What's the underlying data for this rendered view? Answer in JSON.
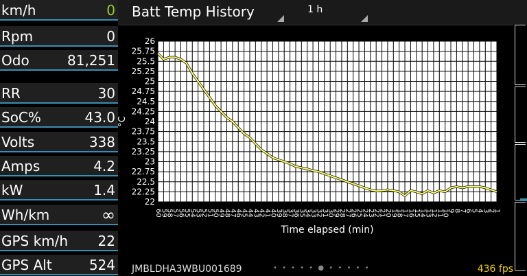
{
  "sidebar": {
    "speed": {
      "label": "km/h",
      "value": "0"
    },
    "rpm": {
      "label": "Rpm",
      "value": "0"
    },
    "odo": {
      "label": "Odo",
      "value": "81,251"
    },
    "rr": {
      "label": "RR",
      "value": "30"
    },
    "soc": {
      "label": "SoC%",
      "value": "43.0"
    },
    "volts": {
      "label": "Volts",
      "value": "338"
    },
    "amps": {
      "label": "Amps",
      "value": "4.2"
    },
    "kw": {
      "label": "kW",
      "value": "1.4"
    },
    "whkm": {
      "label": "Wh/km",
      "value": "∞"
    },
    "gps_speed": {
      "label": "GPS km/h",
      "value": "22"
    },
    "gps_alt": {
      "label": "GPS Alt",
      "value": "524"
    }
  },
  "header": {
    "title": "Batt Temp History",
    "range": "1 h"
  },
  "footer": {
    "vin": "JMBLDHA3WBU001689",
    "pager_dots": "• • • • • ● • • • • •",
    "fps": "436 fps"
  },
  "colors": {
    "accent": "#3a8fb5",
    "series_line": "#ffff66",
    "speed_value": "#9acd32",
    "fps": "#f0d000"
  },
  "chart_data": {
    "type": "line",
    "title": "",
    "xlabel": "Time elapsed (min)",
    "ylabel": "°C",
    "ylim": [
      22,
      26
    ],
    "yticks": [
      "22",
      "22.25",
      "22.5",
      "22.75",
      "23",
      "23.25",
      "23.5",
      "23.75",
      "24",
      "24.25",
      "24.5",
      "24.75",
      "25",
      "25.25",
      "25.5",
      "25.75",
      "26"
    ],
    "xlim": [
      60,
      1
    ],
    "xticks": [
      "60",
      "59",
      "58",
      "57",
      "56",
      "55",
      "54",
      "53",
      "52",
      "51",
      "50",
      "49",
      "48",
      "47",
      "46",
      "45",
      "44",
      "43",
      "42",
      "41",
      "40",
      "39",
      "38",
      "37",
      "36",
      "35",
      "34",
      "33",
      "32",
      "31",
      "30",
      "29",
      "28",
      "27",
      "26",
      "25",
      "24",
      "23",
      "22",
      "21",
      "20",
      "19",
      "18",
      "17",
      "16",
      "15",
      "14",
      "13",
      "12",
      "11",
      "10",
      "9",
      "8",
      "7",
      "6",
      "5",
      "4",
      "3",
      "2",
      "1"
    ],
    "grid": true,
    "series": [
      {
        "x": [
          60,
          59,
          58,
          57,
          56,
          55,
          54,
          53,
          52,
          51,
          50,
          49,
          48,
          47,
          46,
          45,
          44,
          43,
          42,
          41,
          40,
          39,
          38,
          37,
          36,
          35,
          34,
          33,
          32,
          31,
          30,
          29,
          28,
          27,
          26,
          25,
          24,
          23,
          22,
          21,
          20,
          19,
          18,
          17,
          16,
          15,
          14,
          13,
          12,
          11,
          10,
          9,
          8,
          7,
          6,
          5,
          4,
          3,
          2,
          1
        ],
        "y": [
          25.7,
          25.55,
          25.6,
          25.6,
          25.55,
          25.45,
          25.2,
          25.0,
          24.8,
          24.6,
          24.4,
          24.25,
          24.1,
          24.0,
          23.85,
          23.7,
          23.6,
          23.45,
          23.3,
          23.2,
          23.1,
          23.05,
          23.0,
          22.95,
          22.88,
          22.85,
          22.82,
          22.78,
          22.75,
          22.7,
          22.65,
          22.6,
          22.55,
          22.5,
          22.45,
          22.4,
          22.35,
          22.3,
          22.27,
          22.28,
          22.3,
          22.28,
          22.25,
          22.15,
          22.28,
          22.25,
          22.2,
          22.28,
          22.22,
          22.28,
          22.25,
          22.35,
          22.38,
          22.35,
          22.38,
          22.38,
          22.38,
          22.35,
          22.3,
          22.25
        ]
      }
    ]
  }
}
